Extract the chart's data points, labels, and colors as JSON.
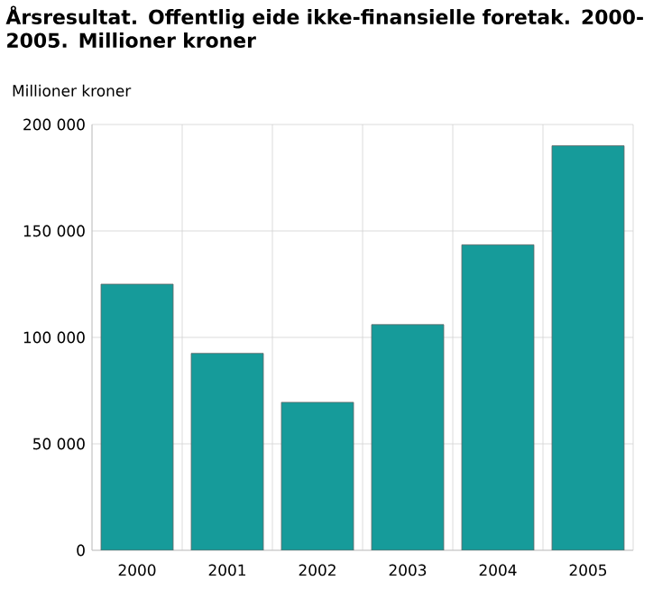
{
  "chart_data": {
    "type": "bar",
    "title": "Årsresultat. Offentlig eide ikke-finansielle foretak. 2000-2005. Millioner kroner",
    "ylabel": "Millioner kroner",
    "categories": [
      "2000",
      "2001",
      "2002",
      "2003",
      "2004",
      "2005"
    ],
    "values": [
      125000,
      92500,
      69500,
      106000,
      143500,
      190000
    ],
    "color": "#169b9a",
    "ylim": [
      0,
      200000
    ],
    "yticks": [
      {
        "value": 0,
        "label": "0"
      },
      {
        "value": 50000,
        "label": "50 000"
      },
      {
        "value": 100000,
        "label": "100 000"
      },
      {
        "value": 150000,
        "label": "150 000"
      },
      {
        "value": 200000,
        "label": "200 000"
      }
    ],
    "grid": true
  }
}
